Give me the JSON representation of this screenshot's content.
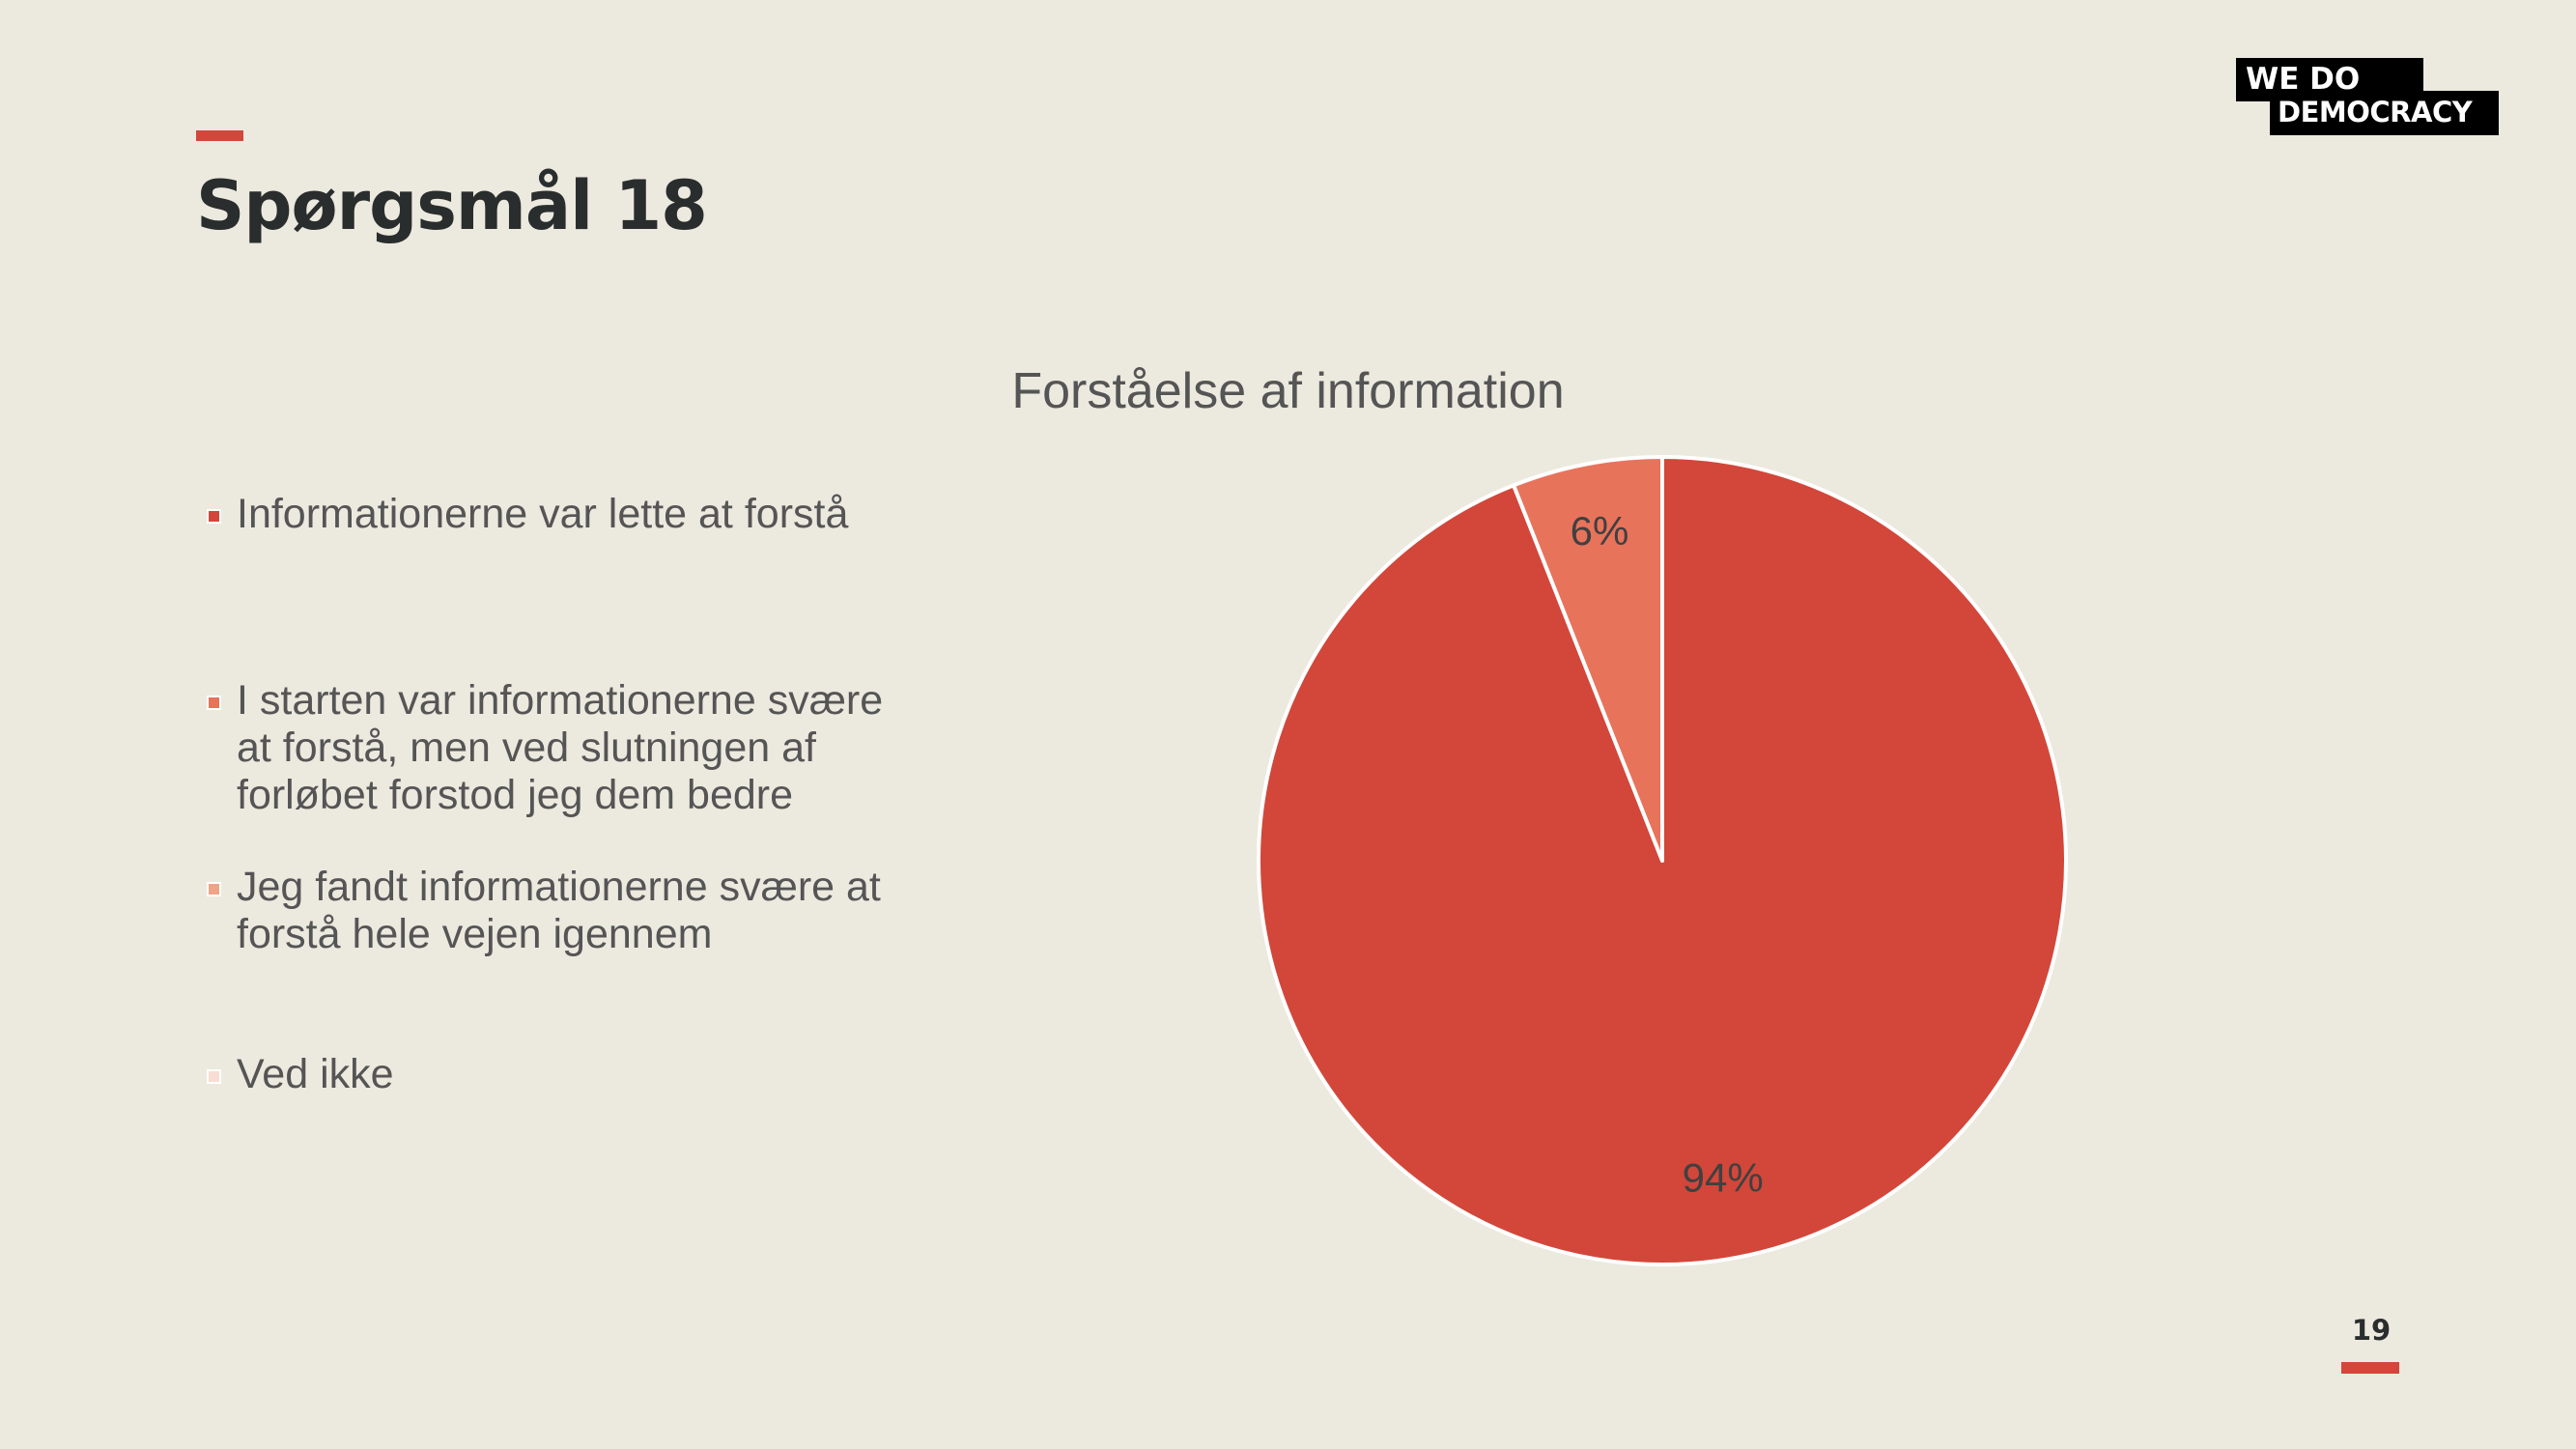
{
  "slide": {
    "title": "Spørgsmål 18",
    "page_number": "19",
    "accent_color": "#D2473A",
    "background_color": "#ECE9DF"
  },
  "logo": {
    "line1": "WE DO",
    "line2": "DEMOCRACY"
  },
  "chart_data": {
    "type": "pie",
    "title": "Forståelse af information",
    "legend_position": "left",
    "series": [
      {
        "categories": [
          "Informationerne var lette at forstå",
          "I starten var informationerne svære at forstå, men ved slutningen af forløbet forstod jeg dem bedre",
          "Jeg fandt informationerne svære at forstå hele vejen igennem",
          "Ved ikke"
        ],
        "values": [
          94,
          6,
          0,
          0
        ],
        "labels": [
          "94%",
          "6%",
          "",
          ""
        ],
        "colors": [
          "#D2473A",
          "#E8735B",
          "#EFA387",
          "#F7DDD2"
        ]
      }
    ]
  }
}
